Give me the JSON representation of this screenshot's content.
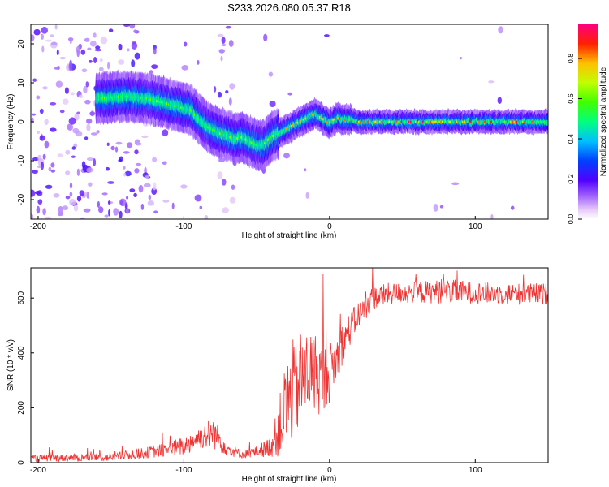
{
  "title": "S233.2026.080.05.37.R18",
  "chart_data": [
    {
      "type": "heatmap",
      "name": "spectrogram",
      "xlabel": "Height of straight line (km)",
      "ylabel": "Frequency (Hz)",
      "xlim": [
        -205,
        150
      ],
      "ylim": [
        -25,
        25
      ],
      "xticks": [
        -200,
        -100,
        0,
        100
      ],
      "yticks": [
        -20,
        -10,
        0,
        10,
        20
      ],
      "colorbar": {
        "label": "Normalized spectral amplitude",
        "range": [
          0,
          0.97
        ],
        "ticks": [
          0.0,
          0.2,
          0.4,
          0.6,
          0.8
        ]
      },
      "ridge": {
        "description": "dominant frequency ridge (Hz) vs height (km)",
        "x": [
          -155,
          -140,
          -125,
          -115,
          -105,
          -95,
          -90,
          -85,
          -80,
          -75,
          -70,
          -65,
          -60,
          -55,
          -50,
          -45,
          -40,
          -35,
          -30,
          -25,
          -20,
          -15,
          -10,
          -5,
          0,
          5,
          10,
          15,
          20,
          150
        ],
        "y": [
          6,
          6.5,
          6,
          5,
          4,
          3,
          1,
          -1,
          -2,
          -3,
          -3.5,
          -4.5,
          -4,
          -5,
          -6,
          -6,
          -4,
          -3,
          -2,
          -1,
          0,
          1,
          2,
          1,
          -0.5,
          1,
          0.5,
          0.5,
          0,
          0
        ]
      }
    },
    {
      "type": "line",
      "name": "snr",
      "xlabel": "Height of straight line (km)",
      "ylabel": "SNR (10 * v/v)",
      "xlim": [
        -205,
        150
      ],
      "ylim": [
        0,
        710
      ],
      "xticks": [
        -200,
        -100,
        0,
        100
      ],
      "yticks": [
        0,
        200,
        400,
        600
      ],
      "color": "#ee3333",
      "envelope": {
        "x": [
          -205,
          -150,
          -120,
          -100,
          -90,
          -80,
          -70,
          -60,
          -50,
          -40,
          -35,
          -30,
          -25,
          -20,
          -15,
          -10,
          -5,
          0,
          5,
          10,
          20,
          30,
          40,
          60,
          80,
          100,
          120,
          150
        ],
        "mean": [
          15,
          20,
          40,
          60,
          90,
          110,
          50,
          30,
          40,
          60,
          120,
          200,
          260,
          300,
          330,
          330,
          300,
          330,
          380,
          450,
          540,
          600,
          615,
          620,
          625,
          620,
          615,
          615
        ],
        "amp": [
          12,
          15,
          22,
          35,
          40,
          60,
          25,
          15,
          20,
          40,
          100,
          180,
          190,
          180,
          160,
          150,
          130,
          110,
          90,
          70,
          50,
          45,
          40,
          40,
          45,
          40,
          40,
          40
        ]
      }
    }
  ]
}
